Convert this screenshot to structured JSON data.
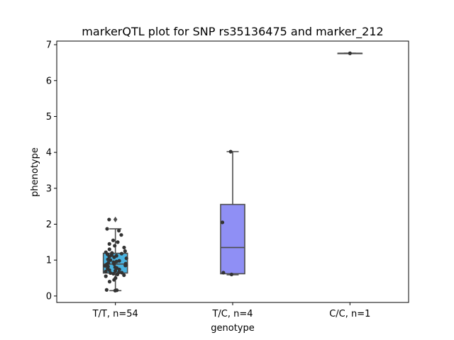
{
  "chart_data": {
    "type": "box",
    "title": "markerQTL plot for SNP rs35136475 and marker_212",
    "xlabel": "genotype",
    "ylabel": "phenotype",
    "ylim": [
      -0.18,
      7.1
    ],
    "yticks": [
      0,
      1,
      2,
      3,
      4,
      5,
      6,
      7
    ],
    "grid": false,
    "legend": "none",
    "categories": [
      "T/T, n=54",
      "T/C, n=4",
      "C/C, n=1"
    ],
    "boxes": [
      {
        "category": "T/T, n=54",
        "color": "#4ab3e0",
        "whisker_low": 0.15,
        "q1": 0.64,
        "median": 0.89,
        "q3": 1.19,
        "whisker_high": 1.87,
        "outliers": [
          2.13
        ]
      },
      {
        "category": "T/C, n=4",
        "color": "#8f8ff5",
        "whisker_low": 0.59,
        "q1": 0.62,
        "median": 1.35,
        "q3": 2.55,
        "whisker_high": 4.02,
        "outliers": []
      },
      {
        "category": "C/C, n=1",
        "color": "#e36ba8",
        "whisker_low": 6.76,
        "q1": 6.76,
        "median": 6.76,
        "q3": 6.76,
        "whisker_high": 6.76,
        "outliers": []
      }
    ],
    "points": [
      {
        "category": "T/T, n=54",
        "values": [
          0.15,
          0.16,
          0.17,
          0.4,
          0.45,
          0.5,
          0.55,
          0.58,
          0.6,
          0.62,
          0.64,
          0.65,
          0.66,
          0.68,
          0.7,
          0.72,
          0.74,
          0.76,
          0.78,
          0.8,
          0.82,
          0.84,
          0.85,
          0.86,
          0.88,
          0.89,
          0.9,
          0.92,
          0.94,
          0.96,
          0.98,
          1.0,
          1.02,
          1.05,
          1.08,
          1.1,
          1.12,
          1.14,
          1.16,
          1.18,
          1.19,
          1.2,
          1.22,
          1.25,
          1.3,
          1.35,
          1.4,
          1.45,
          1.5,
          1.55,
          1.7,
          1.82,
          1.87,
          2.13
        ]
      },
      {
        "category": "T/C, n=4",
        "values": [
          0.6,
          0.65,
          2.05,
          4.02
        ]
      },
      {
        "category": "C/C, n=1",
        "values": [
          6.76
        ]
      }
    ]
  }
}
